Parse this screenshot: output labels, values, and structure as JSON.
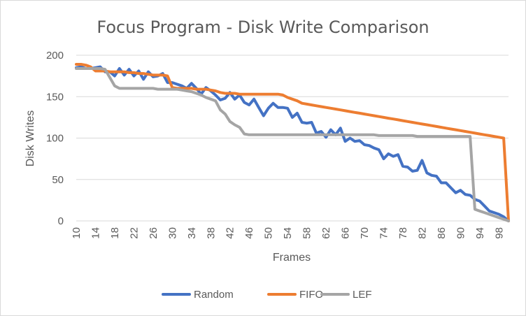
{
  "chart_data": {
    "type": "line",
    "title": "Focus Program - Disk Write Comparison",
    "xlabel": "Frames",
    "ylabel": "Disk Writes",
    "x": [
      10,
      11,
      12,
      13,
      14,
      15,
      16,
      17,
      18,
      19,
      20,
      21,
      22,
      23,
      24,
      25,
      26,
      27,
      28,
      29,
      30,
      31,
      32,
      33,
      34,
      35,
      36,
      37,
      38,
      39,
      40,
      41,
      42,
      43,
      44,
      45,
      46,
      47,
      48,
      49,
      50,
      51,
      52,
      53,
      54,
      55,
      56,
      57,
      58,
      59,
      60,
      61,
      62,
      63,
      64,
      65,
      66,
      67,
      68,
      69,
      70,
      71,
      72,
      73,
      74,
      75,
      76,
      77,
      78,
      79,
      80,
      81,
      82,
      83,
      84,
      85,
      86,
      87,
      88,
      89,
      90,
      91,
      92,
      93,
      94,
      95,
      96,
      97,
      98,
      99,
      100
    ],
    "xticks": [
      10,
      14,
      18,
      22,
      26,
      30,
      34,
      38,
      42,
      46,
      50,
      54,
      58,
      62,
      66,
      70,
      74,
      78,
      82,
      86,
      90,
      94,
      98
    ],
    "yticks": [
      0,
      50,
      100,
      150,
      200
    ],
    "ylim": [
      0,
      200
    ],
    "grid": true,
    "legend_position": "bottom",
    "series": [
      {
        "name": "Random",
        "color": "#4472C4",
        "values": [
          185,
          186,
          184,
          184,
          185,
          186,
          180,
          180,
          175,
          184,
          176,
          183,
          175,
          181,
          171,
          180,
          174,
          175,
          178,
          167,
          167,
          165,
          163,
          160,
          166,
          160,
          153,
          161,
          157,
          152,
          146,
          148,
          155,
          147,
          152,
          143,
          140,
          147,
          137,
          127,
          136,
          142,
          137,
          137,
          136,
          125,
          130,
          119,
          118,
          119,
          106,
          108,
          101,
          110,
          104,
          112,
          96,
          100,
          96,
          97,
          92,
          91,
          88,
          86,
          75,
          81,
          78,
          80,
          66,
          65,
          60,
          61,
          73,
          58,
          55,
          54,
          46,
          46,
          40,
          34,
          37,
          32,
          31,
          26,
          24,
          18,
          12,
          10,
          8,
          5,
          0
        ]
      },
      {
        "name": "FIFO",
        "color": "#ED7D31",
        "values": [
          189,
          189,
          188,
          186,
          181,
          181,
          181,
          180,
          180,
          180,
          180,
          179,
          179,
          178,
          178,
          177,
          176,
          176,
          176,
          175,
          161,
          160,
          160,
          160,
          160,
          159,
          159,
          159,
          158,
          157,
          155,
          154,
          154,
          154,
          153,
          153,
          153,
          153,
          153,
          153,
          153,
          153,
          153,
          152,
          149,
          147,
          145,
          142,
          141,
          140,
          139,
          138,
          137,
          136,
          135,
          134,
          133,
          132,
          131,
          130,
          129,
          128,
          127,
          126,
          125,
          124,
          123,
          122,
          121,
          120,
          119,
          118,
          117,
          116,
          115,
          114,
          113,
          112,
          111,
          110,
          109,
          108,
          107,
          106,
          105,
          104,
          103,
          102,
          101,
          100,
          0
        ]
      },
      {
        "name": "LEF",
        "color": "#A5A5A5",
        "values": [
          184,
          184,
          184,
          184,
          184,
          184,
          183,
          173,
          163,
          160,
          160,
          160,
          160,
          160,
          160,
          160,
          160,
          159,
          159,
          159,
          159,
          159,
          158,
          157,
          156,
          154,
          152,
          149,
          147,
          145,
          134,
          129,
          120,
          116,
          113,
          105,
          104,
          104,
          104,
          104,
          104,
          104,
          104,
          104,
          104,
          104,
          104,
          104,
          104,
          104,
          104,
          104,
          104,
          104,
          104,
          104,
          104,
          104,
          104,
          104,
          104,
          104,
          104,
          103,
          103,
          103,
          103,
          103,
          103,
          103,
          103,
          102,
          102,
          102,
          102,
          102,
          102,
          102,
          102,
          102,
          102,
          102,
          102,
          14,
          12,
          10,
          8,
          6,
          4,
          2,
          0
        ]
      }
    ]
  }
}
